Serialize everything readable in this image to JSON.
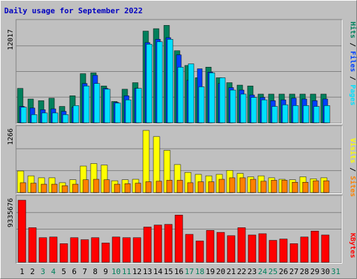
{
  "chart_data": {
    "type": "bar",
    "title": "Daily usage for September 2022",
    "days": [
      "1",
      "2",
      "3",
      "4",
      "5",
      "6",
      "7",
      "8",
      "9",
      "10",
      "11",
      "12",
      "13",
      "14",
      "15",
      "16",
      "17",
      "18",
      "19",
      "20",
      "21",
      "22",
      "23",
      "24",
      "25",
      "26",
      "27",
      "28",
      "29",
      "30",
      "31"
    ],
    "weekend_days": [
      "3",
      "4",
      "10",
      "11",
      "17",
      "18",
      "24",
      "25",
      "31"
    ],
    "colors": {
      "title": "#0000c0",
      "background": "#c0c0c0",
      "gridline": "#808080",
      "hits": "#00805c",
      "files": "#0040ff",
      "pages": "#00e0ff",
      "visits": "#ffff00",
      "sites": "#ff8000",
      "kbytes": "#ff0000",
      "weekday_label": "#000000",
      "weekend_label": "#00805c"
    },
    "panels": [
      {
        "id": "requests",
        "ymax": 12017,
        "ymax_label": "12017",
        "legend": [
          {
            "label": "Hits",
            "color": "#00805c"
          },
          {
            "label": "Files",
            "color": "#0040ff"
          },
          {
            "label": "Pages",
            "color": "#00e0ff"
          }
        ],
        "series": [
          {
            "name": "Hits",
            "values": [
              4200,
              2900,
              2700,
              3000,
              2000,
              3300,
              6000,
              6100,
              4500,
              2600,
              4100,
              4900,
              11200,
              11500,
              11900,
              8800,
              7000,
              5500,
              6800,
              5500,
              4900,
              4600,
              4500,
              3500,
              3500,
              3500,
              3500,
              3500,
              3500,
              3500,
              null
            ]
          },
          {
            "name": "Files",
            "values": [
              2000,
              1800,
              1600,
              1700,
              1400,
              1900,
              4800,
              5800,
              4200,
              2500,
              3300,
              4200,
              9800,
              10200,
              10400,
              8300,
              5200,
              6600,
              6200,
              4800,
              4300,
              4000,
              3400,
              3100,
              2700,
              2800,
              3000,
              2900,
              2700,
              2900,
              null
            ]
          },
          {
            "name": "Pages",
            "values": [
              1900,
              1000,
              1200,
              1200,
              1000,
              2100,
              4500,
              4800,
              4100,
              2400,
              2800,
              4200,
              9600,
              9900,
              10200,
              6800,
              7200,
              4400,
              6100,
              5500,
              4000,
              3500,
              3100,
              2800,
              2000,
              2200,
              2100,
              2100,
              2000,
              2100,
              null
            ]
          }
        ]
      },
      {
        "id": "visitors",
        "ymax": 1266,
        "ymax_label": "1266",
        "legend": [
          {
            "label": "Visits",
            "color": "#ffff00"
          },
          {
            "label": "Sites",
            "color": "#ff8000"
          }
        ],
        "series": [
          {
            "name": "Visits",
            "values": [
              440,
              340,
              300,
              300,
              200,
              260,
              540,
              590,
              560,
              240,
              260,
              270,
              1266,
              1140,
              860,
              570,
              410,
              370,
              340,
              370,
              450,
              390,
              320,
              340,
              300,
              270,
              260,
              320,
              280,
              300,
              null
            ]
          },
          {
            "name": "Sites",
            "values": [
              200,
              190,
              170,
              170,
              140,
              170,
              260,
              270,
              260,
              170,
              180,
              190,
              220,
              230,
              250,
              250,
              200,
              220,
              220,
              270,
              300,
              300,
              270,
              230,
              250,
              250,
              210,
              210,
              240,
              240,
              null
            ]
          }
        ]
      },
      {
        "id": "bytes",
        "ymax": 9335676,
        "ymax_label": "9335676",
        "legend": [
          {
            "label": "KBytes",
            "color": "#ff0000"
          }
        ],
        "series": [
          {
            "name": "KBytes",
            "values": [
              9335676,
              5200000,
              3700000,
              3800000,
              2800000,
              3700000,
              3400000,
              3700000,
              2900000,
              3800000,
              3700000,
              3700000,
              5300000,
              5600000,
              5700000,
              7100000,
              4200000,
              3200000,
              4800000,
              4500000,
              4000000,
              5200000,
              4100000,
              4300000,
              3300000,
              3500000,
              2800000,
              3800000,
              4700000,
              4100000,
              null
            ]
          }
        ]
      }
    ]
  }
}
